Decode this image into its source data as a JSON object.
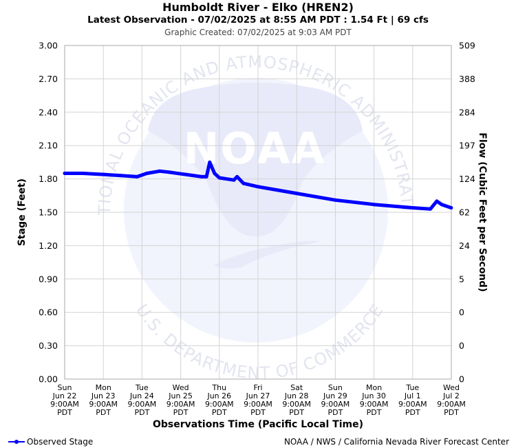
{
  "header": {
    "title": "Humboldt River - Elko (HREN2)",
    "subtitle": "Latest Observation - 07/02/2025 at 8:55 AM PDT : 1.54 Ft | 69 cfs",
    "created": "Graphic Created: 07/02/2025 at 9:03 AM PDT"
  },
  "footer": {
    "legend_label": "Observed Stage",
    "credit": "NOAA / NWS / California Nevada River Forecast Center"
  },
  "watermark": {
    "logo_text": "NOAA",
    "seal_text_top": "NATIONAL OCEANIC AND ATMOSPHERIC ADMINISTRATION",
    "seal_text_bottom": "U.S. DEPARTMENT OF COMMERCE"
  },
  "colors": {
    "series": "#0000ff",
    "grid": "#d3d3d3",
    "watermark_light": "#f1f4fc",
    "watermark_dark": "#e8eaf9",
    "background": "#ffffff"
  },
  "chart_data": {
    "type": "line",
    "title": "Humboldt River - Elko (HREN2)",
    "xlabel": "Observations Time (Pacific Local Time)",
    "ylabel": "Stage (Feet)",
    "y2label": "Flow (Cubic Feet per Second)",
    "ylim": [
      0,
      3
    ],
    "y_ticks": [
      "0.00",
      "0.30",
      "0.60",
      "0.90",
      "1.20",
      "1.50",
      "1.80",
      "2.10",
      "2.40",
      "2.70",
      "3.00"
    ],
    "y2_ticks": [
      "0",
      "0",
      "0",
      "5",
      "24",
      "62",
      "124",
      "197",
      "284",
      "388",
      "509"
    ],
    "x_ticks": [
      [
        "Sun",
        "Jun 22",
        "9:00AM",
        "PDT"
      ],
      [
        "Mon",
        "Jun 23",
        "9:00AM",
        "PDT"
      ],
      [
        "Tue",
        "Jun 24",
        "9:00AM",
        "PDT"
      ],
      [
        "Wed",
        "Jun 25",
        "9:00AM",
        "PDT"
      ],
      [
        "Thu",
        "Jun 26",
        "9:00AM",
        "PDT"
      ],
      [
        "Fri",
        "Jun 27",
        "9:00AM",
        "PDT"
      ],
      [
        "Sat",
        "Jun 28",
        "9:00AM",
        "PDT"
      ],
      [
        "Sun",
        "Jun 29",
        "9:00AM",
        "PDT"
      ],
      [
        "Mon",
        "Jun 30",
        "9:00AM",
        "PDT"
      ],
      [
        "Tue",
        "Jul 1",
        "9:00AM",
        "PDT"
      ],
      [
        "Wed",
        "Jul 2",
        "9:00AM",
        "PDT"
      ]
    ],
    "grid": true,
    "legend_placement": "bottom-left",
    "series": [
      {
        "name": "Observed Stage",
        "x": [
          "2025-06-22 09:00",
          "2025-06-22 20:00",
          "2025-06-23 09:00",
          "2025-06-23 20:00",
          "2025-06-24 06:00",
          "2025-06-24 12:00",
          "2025-06-24 20:00",
          "2025-06-25 02:00",
          "2025-06-25 12:00",
          "2025-06-25 22:00",
          "2025-06-26 01:00",
          "2025-06-26 03:00",
          "2025-06-26 06:00",
          "2025-06-26 09:00",
          "2025-06-26 18:00",
          "2025-06-26 20:00",
          "2025-06-27 00:00",
          "2025-06-27 09:00",
          "2025-06-28 09:00",
          "2025-06-29 09:00",
          "2025-06-30 09:00",
          "2025-07-01 09:00",
          "2025-07-01 20:00",
          "2025-07-02 00:00",
          "2025-07-02 03:00",
          "2025-07-02 08:55"
        ],
        "y": [
          1.85,
          1.85,
          1.84,
          1.83,
          1.82,
          1.85,
          1.87,
          1.86,
          1.84,
          1.82,
          1.82,
          1.95,
          1.85,
          1.81,
          1.79,
          1.82,
          1.76,
          1.73,
          1.67,
          1.61,
          1.57,
          1.54,
          1.53,
          1.6,
          1.57,
          1.54
        ]
      }
    ]
  }
}
